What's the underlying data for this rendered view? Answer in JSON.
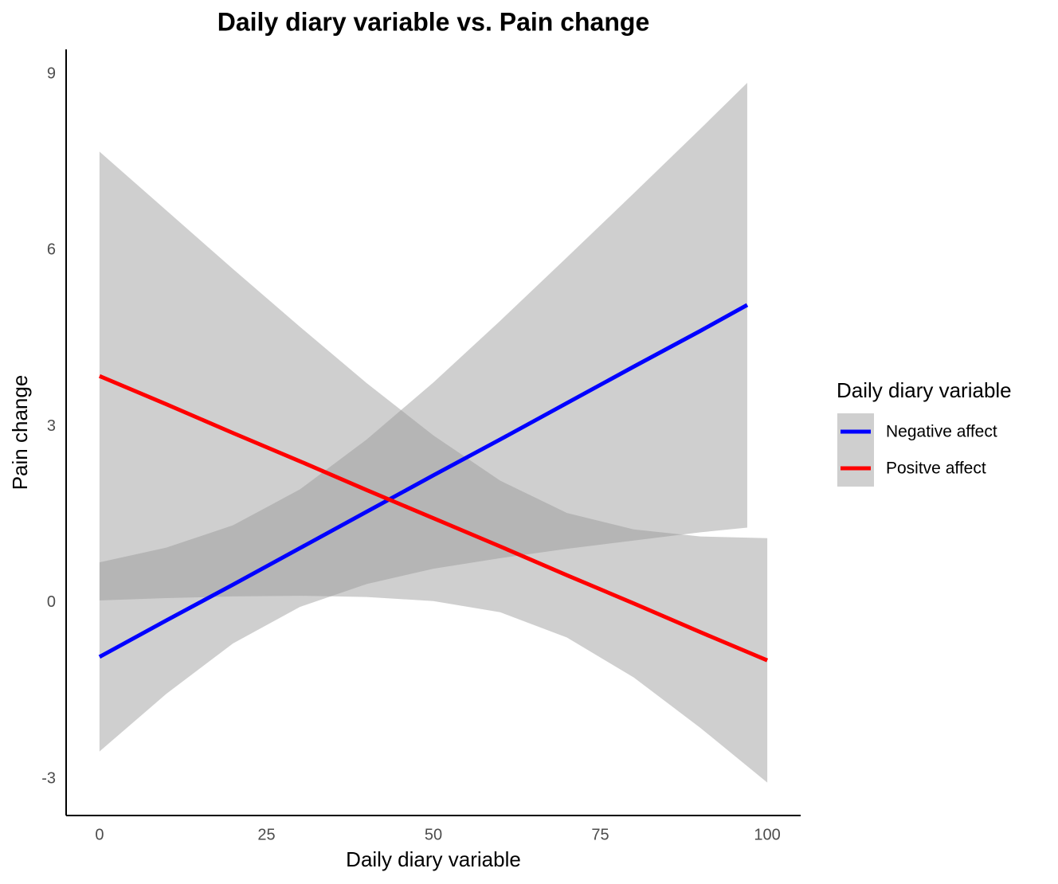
{
  "chart_data": {
    "type": "line-ribbon",
    "title": "Daily diary variable vs. Pain change",
    "x_label": "Daily diary variable",
    "y_label": "Pain change",
    "legend_title": "Daily diary variable",
    "legend_position": "right",
    "ribbon_color": "#999999",
    "xlim": [
      -5,
      105
    ],
    "xticks": [
      0,
      25,
      50,
      75,
      100
    ],
    "ylim": [
      -3.62,
      9.42
    ],
    "yticks": [
      -3,
      0,
      3,
      6,
      9
    ],
    "series": [
      {
        "name": "Negative affect",
        "color": "#0000ff",
        "x": [
          0,
          10,
          20,
          30,
          40,
          50,
          60,
          70,
          80,
          90,
          97
        ],
        "values": [
          -0.92,
          -0.3,
          0.31,
          0.93,
          1.55,
          2.17,
          2.78,
          3.4,
          4.02,
          4.63,
          5.07
        ],
        "upper": [
          0.69,
          0.94,
          1.32,
          1.93,
          2.78,
          3.75,
          4.8,
          5.88,
          6.97,
          8.07,
          8.85
        ],
        "lower": [
          -2.53,
          -1.55,
          -0.69,
          -0.07,
          0.32,
          0.58,
          0.76,
          0.92,
          1.06,
          1.2,
          1.28
        ]
      },
      {
        "name": "Positve affect",
        "color": "#ff0000",
        "x": [
          0,
          10,
          20,
          30,
          40,
          50,
          60,
          70,
          80,
          90,
          100
        ],
        "values": [
          3.86,
          3.38,
          2.89,
          2.41,
          1.92,
          1.44,
          0.96,
          0.47,
          -0.01,
          -0.5,
          -0.98
        ],
        "upper": [
          7.68,
          6.68,
          5.68,
          4.7,
          3.74,
          2.85,
          2.08,
          1.53,
          1.25,
          1.13,
          1.1
        ],
        "lower": [
          0.04,
          0.08,
          0.11,
          0.12,
          0.1,
          0.03,
          -0.16,
          -0.59,
          -1.27,
          -2.13,
          -3.06
        ]
      }
    ]
  }
}
